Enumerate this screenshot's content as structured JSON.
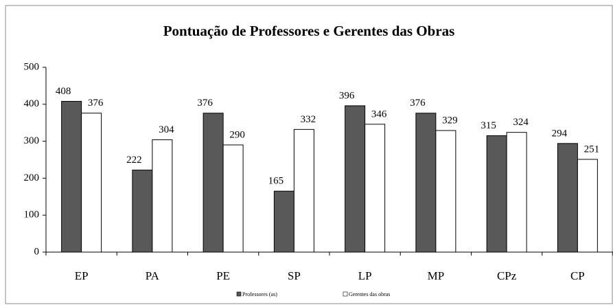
{
  "chart_data": {
    "type": "bar",
    "title": "Pontuação de Professores e Gerentes das Obras",
    "categories": [
      "EP",
      "PA",
      "PE",
      "SP",
      "LP",
      "MP",
      "CPz",
      "CP"
    ],
    "series": [
      {
        "name": "Professores (as)",
        "color": "#595959",
        "values": [
          408,
          222,
          376,
          165,
          396,
          376,
          315,
          294
        ]
      },
      {
        "name": "Gerentes das obras",
        "color": "#ffffff",
        "values": [
          376,
          304,
          290,
          332,
          346,
          329,
          324,
          251
        ]
      }
    ],
    "ylim": [
      0,
      500
    ],
    "yticks": [
      0,
      100,
      200,
      300,
      400,
      500
    ],
    "grid": false,
    "legend": "bottom"
  }
}
